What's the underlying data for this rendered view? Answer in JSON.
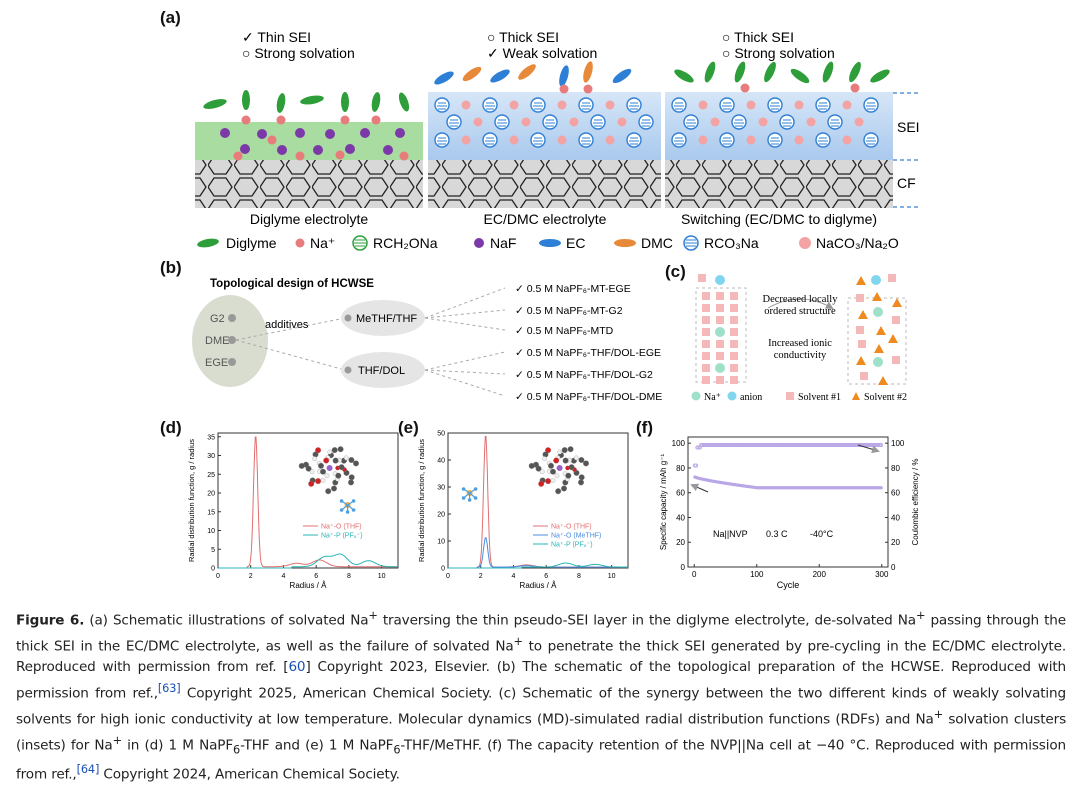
{
  "panel_a": {
    "label": "(a)",
    "col1": {
      "line1": "✓ Thin SEI",
      "line2": "○ Strong solvation",
      "title": "Diglyme electrolyte"
    },
    "col2": {
      "line1": "○ Thick SEI",
      "line2": "✓ Weak solvation",
      "title": "EC/DMC electrolyte"
    },
    "col3": {
      "line1": "○ Thick SEI",
      "line2": "○ Strong solvation",
      "title": "Switching (EC/DMC to diglyme)"
    },
    "side_labels": {
      "sei": "SEI",
      "cf": "CF"
    },
    "legend": {
      "diglyme": "Diglyme",
      "na": "Na⁺",
      "rch2ona": "RCH₂ONa",
      "naf": "NaF",
      "ec": "EC",
      "dmc": "DMC",
      "rco3na": "RCO₃Na",
      "naco3": "NaCO₃/Na₂O"
    },
    "colors": {
      "diglyme": "#2e9e3a",
      "na": "#e87b7b",
      "naf": "#7b3aa8",
      "ec": "#2e7fd6",
      "dmc": "#e8893a",
      "sei_green": "#9fd89a",
      "sei_blue": "#b8d4f0"
    }
  },
  "panel_b": {
    "label": "(b)",
    "title": "Topological design of HCWSE",
    "solvents": [
      "G2",
      "DME",
      "EGE"
    ],
    "additives_label": "additives",
    "nodes": [
      "MeTHF/THF",
      "THF/DOL"
    ],
    "results": [
      "✓ 0.5 M NaPF₆-MT-EGE",
      "✓ 0.5 M NaPF₆-MT-G2",
      "✓ 0.5 M NaPF₆-MTD",
      "✓ 0.5 M NaPF₆-THF/DOL-EGE",
      "✓ 0.5 M NaPF₆-THF/DOL-G2",
      "✓ 0.5 M NaPF₆-THF/DOL-DME"
    ]
  },
  "panel_c": {
    "label": "(c)",
    "arrow_top": "Decreased locally ordered structure",
    "arrow_bottom": "Increased ionic conductivity",
    "legend": {
      "na": "Na⁺",
      "anion": "anion",
      "solvent1": "Solvent #1",
      "solvent2": "Solvent #2"
    }
  },
  "panel_d": {
    "label": "(d)",
    "ylabel": "Radial distribution function, g / radius",
    "xlabel": "Radius / Å",
    "legend": [
      "Na⁺-O (THF)",
      "Na⁺-P (PF₆⁻)"
    ],
    "chart_data": {
      "type": "line",
      "xlim": [
        0,
        11
      ],
      "ylim": [
        0,
        36
      ],
      "xticks": [
        0,
        2,
        4,
        6,
        8,
        10
      ],
      "yticks": [
        0,
        5,
        10,
        15,
        20,
        25,
        30,
        35
      ],
      "series": [
        {
          "name": "Na⁺-O (THF)",
          "color": "#e07070",
          "peaks": [
            [
              2.3,
              35
            ],
            [
              4.8,
              0.9
            ],
            [
              6.2,
              1.8
            ]
          ]
        },
        {
          "name": "Na⁺-P (PF₆⁻)",
          "color": "#2ab5b5",
          "peaks": [
            [
              6.5,
              2.5
            ],
            [
              7.5,
              3.2
            ],
            [
              9.2,
              1.6
            ]
          ]
        }
      ]
    }
  },
  "panel_e": {
    "label": "(e)",
    "ylabel": "Radial distribution function, g / radius",
    "xlabel": "Radius / Å",
    "legend": [
      "Na⁺-O (THF)",
      "Na⁺-O (MeTHF)",
      "Na⁺-P (PF₆⁻)"
    ],
    "chart_data": {
      "type": "line",
      "xlim": [
        0,
        11
      ],
      "ylim": [
        0,
        50
      ],
      "xticks": [
        0,
        2,
        4,
        6,
        8,
        10
      ],
      "yticks": [
        0,
        10,
        20,
        30,
        40,
        50
      ],
      "series": [
        {
          "name": "Na⁺-O (THF)",
          "color": "#e07070",
          "peaks": [
            [
              2.3,
              49
            ],
            [
              4.8,
              0.8
            ]
          ]
        },
        {
          "name": "Na⁺-O (MeTHF)",
          "color": "#4a8ce0",
          "peaks": [
            [
              2.3,
              11
            ],
            [
              4.8,
              0.5
            ]
          ]
        },
        {
          "name": "Na⁺-P (PF₆⁻)",
          "color": "#2ab5b5",
          "peaks": [
            [
              7.2,
              1.5
            ],
            [
              9.0,
              1.0
            ]
          ]
        }
      ]
    }
  },
  "panel_f": {
    "label": "(f)",
    "ylabel_left": "Specific capacity / mAh g⁻¹",
    "ylabel_right": "Coulombic efficiency / %",
    "xlabel": "Cycle",
    "annotations": [
      "Na||NVP",
      "0.3 C",
      "-40°C"
    ],
    "chart_data": {
      "type": "scatter",
      "xlim": [
        -10,
        310
      ],
      "ylim": [
        0,
        105
      ],
      "xticks": [
        0,
        100,
        200,
        300
      ],
      "yticks": [
        0,
        20,
        40,
        60,
        80,
        100
      ],
      "series": [
        {
          "name": "Coulombic efficiency",
          "color": "#b9a6e6",
          "start": 82,
          "plateau": 98.5
        },
        {
          "name": "Specific capacity",
          "color": "#b9a6e6",
          "start": 73,
          "end": 64
        }
      ]
    }
  },
  "caption": {
    "fig": "Figure 6.",
    "p1": " (a) Schematic illustrations of solvated Na",
    "p2": " traversing the thin pseudo-SEI layer in the diglyme electrolyte, de-solvated Na",
    "p3": " passing through the thick SEI in the EC/DMC electrolyte, as well as the failure of solvated Na",
    "p4": " to penetrate the thick SEI generated by pre-cycling in the EC/DMC electrolyte. Reproduced with permission from ref. [",
    "ref1": "60",
    "p5": "] Copyright 2023, Elsevier. (b) The schematic of the topological preparation of the HCWSE. Reproduced with permission from ref.,",
    "ref2": "[63]",
    "p6": " Copyright 2025, American Chemical Society. (c) Schematic of the synergy between the two different kinds of weakly solvating solvents for high ionic conductivity at low temperature. Molecular dynamics (MD)-simulated radial distribution functions (RDFs) and Na",
    "p7": " solvation clusters (insets) for Na",
    "p8": " in (d) 1 M NaPF",
    "p9": "-THF and (e) 1 M NaPF",
    "p10": "-THF/MeTHF. (f) The capacity retention of the NVP||Na cell at −40 °C. Reproduced with permission from ref.,",
    "ref3": "[64]",
    "p11": " Copyright 2024, American Chemical Society."
  }
}
